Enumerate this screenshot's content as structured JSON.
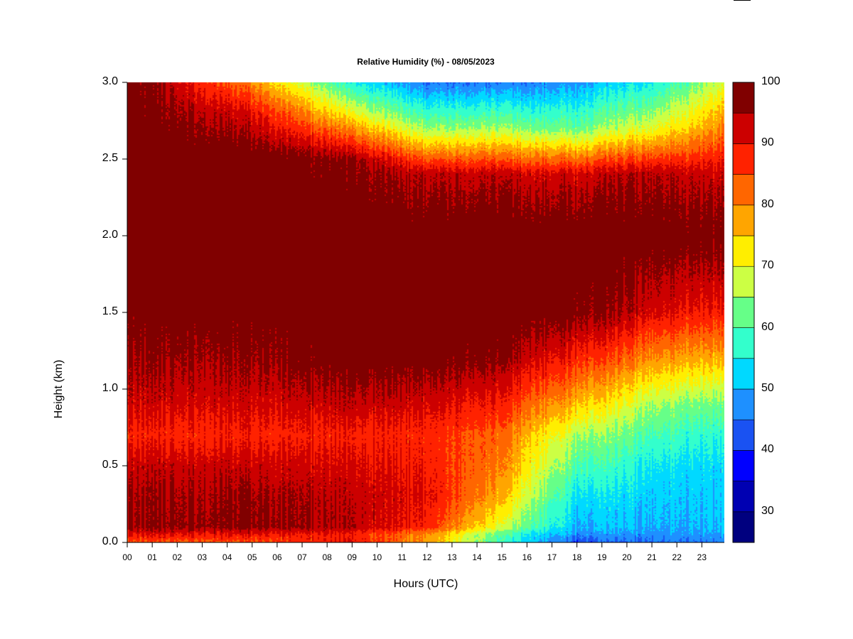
{
  "chart_data": {
    "type": "heatmap",
    "title": "Relative Humidity (%) - 08/05/2023",
    "xlabel": "Hours (UTC)",
    "ylabel": "Height (km)",
    "x_ticks": [
      "00",
      "01",
      "02",
      "03",
      "04",
      "05",
      "06",
      "07",
      "08",
      "09",
      "10",
      "11",
      "12",
      "13",
      "14",
      "15",
      "16",
      "17",
      "18",
      "19",
      "20",
      "21",
      "22",
      "23"
    ],
    "y_ticks": [
      "0.0",
      "0.5",
      "1.0",
      "1.5",
      "2.0",
      "2.5",
      "3.0"
    ],
    "xlim": [
      0,
      23.9
    ],
    "ylim": [
      0,
      3.0
    ],
    "colorbar": {
      "ticks": [
        "30",
        "40",
        "50",
        "60",
        "70",
        "80",
        "90",
        "100"
      ],
      "range": [
        25,
        100
      ],
      "levels": [
        25,
        30,
        35,
        40,
        45,
        50,
        55,
        60,
        65,
        70,
        75,
        80,
        85,
        90,
        95,
        100
      ],
      "colors": [
        "#00007f",
        "#0000b2",
        "#0000ff",
        "#1a52f2",
        "#1e90ff",
        "#00d9ff",
        "#33ffcc",
        "#66ff88",
        "#ccff44",
        "#ffee00",
        "#ffa500",
        "#ff6600",
        "#ff2200",
        "#cc0000",
        "#800000"
      ]
    },
    "regime_profiles": [
      {
        "hour": 0,
        "heights_km": [
          0,
          0.05,
          0.1,
          0.3,
          0.5,
          0.7,
          0.9,
          1.2,
          1.5,
          2.0,
          2.5,
          2.8,
          3.0
        ],
        "rh": [
          84,
          90,
          96,
          95,
          93,
          88,
          92,
          96,
          99,
          100,
          100,
          100,
          100
        ]
      },
      {
        "hour": 5,
        "heights_km": [
          0,
          0.05,
          0.1,
          0.3,
          0.5,
          0.7,
          0.9,
          1.2,
          1.5,
          2.0,
          2.5,
          2.8,
          3.0
        ],
        "rh": [
          84,
          90,
          97,
          96,
          93,
          88,
          92,
          96,
          99,
          100,
          100,
          91,
          80
        ]
      },
      {
        "hour": 9,
        "heights_km": [
          0,
          0.05,
          0.1,
          0.3,
          0.5,
          0.7,
          0.9,
          1.2,
          1.5,
          2.0,
          2.5,
          2.8,
          3.0
        ],
        "rh": [
          90,
          88,
          94,
          93,
          91,
          88,
          93,
          99,
          100,
          100,
          96,
          70,
          55
        ]
      },
      {
        "hour": 12,
        "heights_km": [
          0,
          0.05,
          0.1,
          0.3,
          0.5,
          0.7,
          0.9,
          1.2,
          1.5,
          2.0,
          2.4,
          2.7,
          3.0
        ],
        "rh": [
          78,
          80,
          88,
          91,
          89,
          88,
          92,
          99,
          100,
          100,
          94,
          65,
          45
        ]
      },
      {
        "hour": 15,
        "heights_km": [
          0,
          0.05,
          0.1,
          0.3,
          0.5,
          0.7,
          0.9,
          1.2,
          1.5,
          2.0,
          2.4,
          2.7,
          3.0
        ],
        "rh": [
          58,
          60,
          68,
          76,
          80,
          82,
          88,
          96,
          100,
          100,
          93,
          65,
          45
        ]
      },
      {
        "hour": 18,
        "heights_km": [
          0,
          0.05,
          0.1,
          0.3,
          0.5,
          0.7,
          0.9,
          1.2,
          1.5,
          2.0,
          2.4,
          2.7,
          3.0
        ],
        "rh": [
          42,
          47,
          50,
          54,
          60,
          66,
          76,
          88,
          98,
          100,
          92,
          62,
          48
        ]
      },
      {
        "hour": 21,
        "heights_km": [
          0,
          0.05,
          0.1,
          0.3,
          0.5,
          0.7,
          0.9,
          1.2,
          1.5,
          2.0,
          2.4,
          2.7,
          3.0
        ],
        "rh": [
          45,
          48,
          50,
          52,
          55,
          60,
          66,
          80,
          92,
          100,
          95,
          70,
          55
        ]
      },
      {
        "hour": 23.9,
        "heights_km": [
          0,
          0.05,
          0.1,
          0.3,
          0.5,
          0.7,
          0.9,
          1.2,
          1.5,
          2.0,
          2.4,
          2.7,
          3.0
        ],
        "rh": [
          46,
          48,
          50,
          51,
          52,
          56,
          62,
          76,
          88,
          98,
          92,
          80,
          68
        ]
      }
    ]
  }
}
